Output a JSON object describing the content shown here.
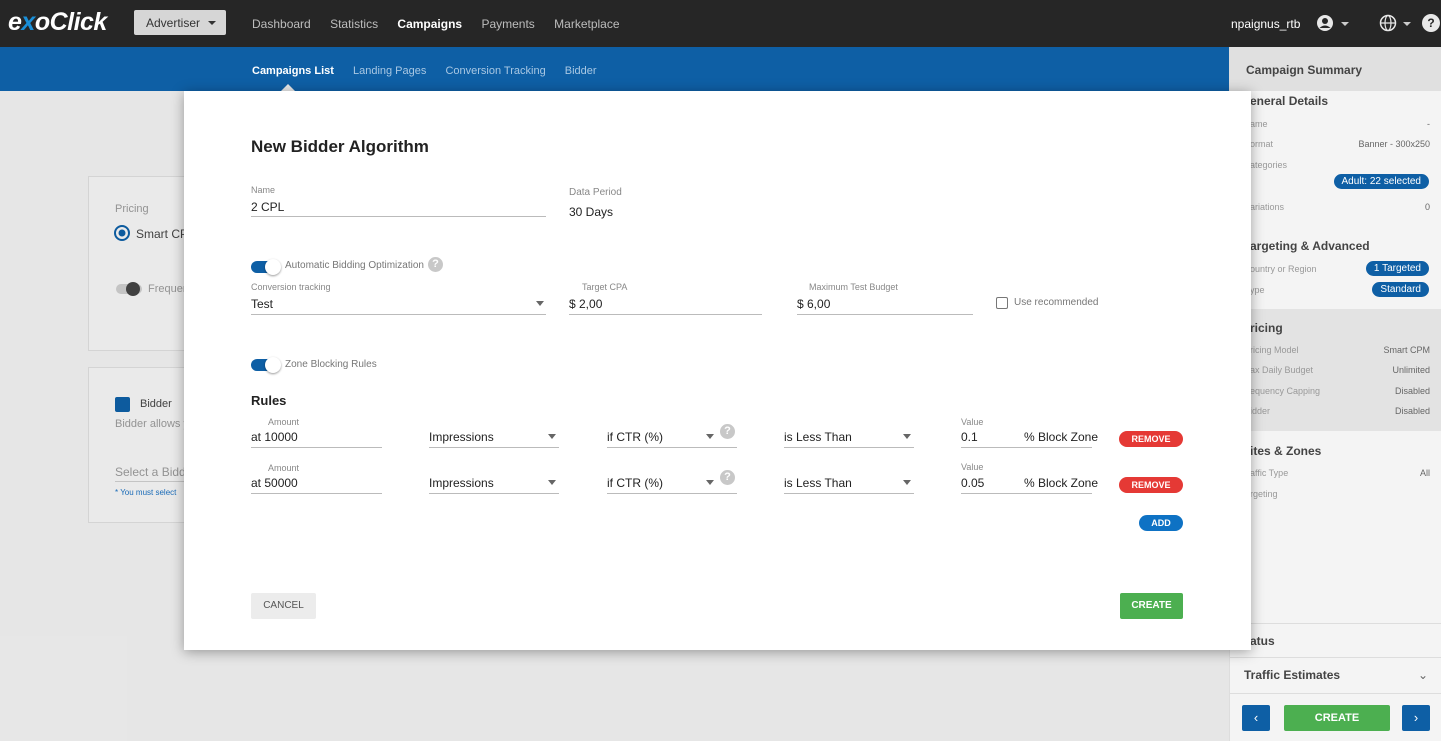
{
  "topbar": {
    "logo_left": "e",
    "logo_x": "x",
    "logo_right": "oClick",
    "account_type": "Advertiser",
    "nav": [
      "Dashboard",
      "Statistics",
      "Campaigns",
      "Payments",
      "Marketplace"
    ],
    "active_nav": "Campaigns",
    "username": "npaignus_rtb",
    "user_icon": "user-circle-icon",
    "globe_icon": "globe-icon",
    "help_icon": "help-icon",
    "help_glyph": "?"
  },
  "subnav": {
    "items": [
      "Campaigns List",
      "Landing Pages",
      "Conversion Tracking",
      "Bidder"
    ],
    "active": "Campaigns List"
  },
  "background": {
    "pricing_label": "Pricing",
    "smart_cpm": "Smart CP",
    "frequency": "Frequen",
    "bidder_label": "Bidder",
    "bidder_allows": "Bidder allows y",
    "select_bidder": "Select a Biddi",
    "must_select": "* You must select"
  },
  "sidebar": {
    "title": "Campaign Summary",
    "general": "eneral Details",
    "name_label": "ame",
    "name_value": "-",
    "format_label": "ormat",
    "format_value": "Banner - 300x250",
    "categories_label": "ategories",
    "categories_pill": "Adult: 22 selected",
    "variations_label": "ariations",
    "variations_value": "0",
    "targeting": "argeting & Advanced",
    "country_label": "ountry or Region",
    "country_pill": "1 Targeted",
    "type_label": "ype",
    "type_pill": "Standard",
    "pricing": "ricing",
    "pricing_model_label": "ricing Model",
    "pricing_model_value": "Smart CPM",
    "max_budget_label": "ax Daily Budget",
    "max_budget_value": "Unlimited",
    "freq_label": "equency Capping",
    "freq_value": "Disabled",
    "bidder_label": "idder",
    "bidder_value": "Disabled",
    "sites": "ites & Zones",
    "traffic_type_label": "affic Type",
    "traffic_type_value": "All",
    "targeting_label": "rgeting",
    "status": "tatus",
    "traffic_estimates": "Traffic Estimates",
    "chevron": "⌄",
    "prev": "‹",
    "next": "›",
    "create": "CREATE"
  },
  "modal": {
    "title": "New Bidder Algorithm",
    "name_label": "Name",
    "name_value": "2 CPL",
    "data_period_label": "Data Period",
    "data_period_value": "30 Days",
    "auto_bidding_label": "Automatic Bidding Optimization",
    "help_glyph": "?",
    "conversion_label": "Conversion tracking",
    "conversion_value": "Test",
    "target_cpa_label": "Target CPA",
    "target_cpa_value": "$  2,00",
    "max_budget_label": "Maximum Test Budget",
    "max_budget_value": "$  6,00",
    "use_recommended": "Use recommended",
    "zone_blocking_label": "Zone Blocking Rules",
    "rules_title": "Rules",
    "rules": [
      {
        "amount_label": "Amount",
        "amount": "at  10000",
        "metric": "Impressions",
        "condition": "if  CTR (%)",
        "comparator": "is  Less Than",
        "value_label": "Value",
        "value": "0.1",
        "action": "% Block Zone",
        "remove": "REMOVE"
      },
      {
        "amount_label": "Amount",
        "amount": "at  50000",
        "metric": "Impressions",
        "condition": "if  CTR (%)",
        "comparator": "is  Less Than",
        "value_label": "Value",
        "value": "0.05",
        "action": "% Block Zone",
        "remove": "REMOVE"
      }
    ],
    "add": "ADD",
    "cancel": "CANCEL",
    "create": "CREATE"
  }
}
